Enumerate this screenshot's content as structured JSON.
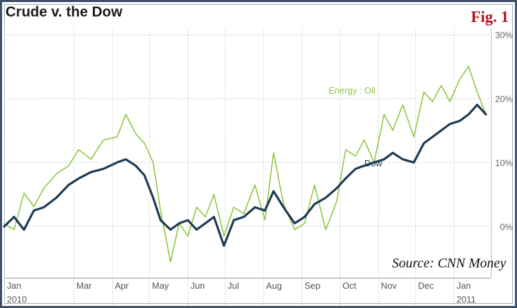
{
  "title": "Crude v. the Dow",
  "figure_label": "Fig. 1",
  "source": "Source: CNN Money",
  "colors": {
    "dow": "#1d3a52",
    "oil": "#8dc63f",
    "grid": "#cfcfcf",
    "frame": "#3d4f66"
  },
  "chart_data": {
    "type": "line",
    "title": "Crude v. the Dow",
    "xlabel": "",
    "ylabel": "",
    "ylim": [
      -8,
      30
    ],
    "y_ticks": [
      0,
      10,
      20,
      30
    ],
    "y_tick_labels": [
      "0%",
      "10%",
      "20%",
      "30%"
    ],
    "x_tick_labels": [
      "Jan",
      "Mar",
      "Apr",
      "May",
      "Jun",
      "Jul",
      "Aug",
      "Sep",
      "Oct",
      "Nov",
      "Dec",
      "Jan"
    ],
    "x_year_labels": [
      "2010",
      "2011"
    ],
    "grid": true,
    "series_labels": [
      "Energy : Oil",
      "Dow"
    ],
    "series": [
      {
        "name": "Energy : Oil",
        "x": [
          "2010-01-04",
          "2010-01-12",
          "2010-01-20",
          "2010-01-28",
          "2010-02-05",
          "2010-02-15",
          "2010-02-25",
          "2010-03-05",
          "2010-03-15",
          "2010-03-25",
          "2010-04-05",
          "2010-04-12",
          "2010-04-20",
          "2010-04-27",
          "2010-05-04",
          "2010-05-10",
          "2010-05-18",
          "2010-05-25",
          "2010-06-01",
          "2010-06-08",
          "2010-06-15",
          "2010-06-22",
          "2010-06-30",
          "2010-07-08",
          "2010-07-16",
          "2010-07-25",
          "2010-08-02",
          "2010-08-09",
          "2010-08-17",
          "2010-08-26",
          "2010-09-03",
          "2010-09-11",
          "2010-09-20",
          "2010-09-29",
          "2010-10-06",
          "2010-10-14",
          "2010-10-21",
          "2010-10-29",
          "2010-11-06",
          "2010-11-13",
          "2010-11-21",
          "2010-11-30",
          "2010-12-08",
          "2010-12-15",
          "2010-12-22",
          "2010-12-29",
          "2011-01-06",
          "2011-01-13",
          "2011-01-20",
          "2011-01-27"
        ],
        "values": [
          0.4,
          -0.5,
          5.2,
          3.1,
          6.0,
          8.2,
          9.5,
          12.0,
          10.5,
          13.5,
          14.0,
          17.5,
          14.5,
          13.0,
          10.0,
          2.5,
          -5.5,
          0.5,
          -1.5,
          3.0,
          1.5,
          5.0,
          -1.5,
          3.0,
          2.0,
          6.5,
          1.0,
          11.5,
          3.5,
          -0.5,
          0.5,
          6.5,
          -0.5,
          4.0,
          12.0,
          11.0,
          13.5,
          10.0,
          17.5,
          15.0,
          19.0,
          14.0,
          21.0,
          19.5,
          22.0,
          19.5,
          23.0,
          25.0,
          21.0,
          17.5
        ]
      },
      {
        "name": "Dow",
        "x": [
          "2010-01-04",
          "2010-01-12",
          "2010-01-20",
          "2010-01-28",
          "2010-02-05",
          "2010-02-15",
          "2010-02-25",
          "2010-03-05",
          "2010-03-15",
          "2010-03-25",
          "2010-04-05",
          "2010-04-12",
          "2010-04-20",
          "2010-04-27",
          "2010-05-04",
          "2010-05-10",
          "2010-05-18",
          "2010-05-25",
          "2010-06-01",
          "2010-06-08",
          "2010-06-15",
          "2010-06-22",
          "2010-06-30",
          "2010-07-08",
          "2010-07-16",
          "2010-07-25",
          "2010-08-02",
          "2010-08-09",
          "2010-08-17",
          "2010-08-26",
          "2010-09-03",
          "2010-09-11",
          "2010-09-20",
          "2010-09-29",
          "2010-10-06",
          "2010-10-14",
          "2010-10-21",
          "2010-10-29",
          "2010-11-06",
          "2010-11-13",
          "2010-11-21",
          "2010-11-30",
          "2010-12-08",
          "2010-12-15",
          "2010-12-22",
          "2010-12-29",
          "2011-01-06",
          "2011-01-13",
          "2011-01-20",
          "2011-01-27"
        ],
        "values": [
          0.0,
          1.5,
          -0.5,
          2.5,
          3.0,
          4.5,
          6.5,
          7.5,
          8.5,
          9.0,
          10.0,
          10.5,
          9.5,
          8.0,
          4.5,
          1.0,
          -0.5,
          0.5,
          1.0,
          -0.5,
          0.5,
          1.5,
          -3.0,
          1.0,
          1.5,
          3.0,
          2.5,
          5.5,
          3.0,
          0.5,
          1.5,
          3.5,
          4.5,
          6.0,
          7.5,
          9.0,
          9.5,
          10.0,
          10.5,
          11.5,
          10.5,
          10.0,
          13.0,
          14.0,
          15.0,
          16.0,
          16.5,
          17.5,
          19.0,
          17.5
        ]
      }
    ]
  }
}
